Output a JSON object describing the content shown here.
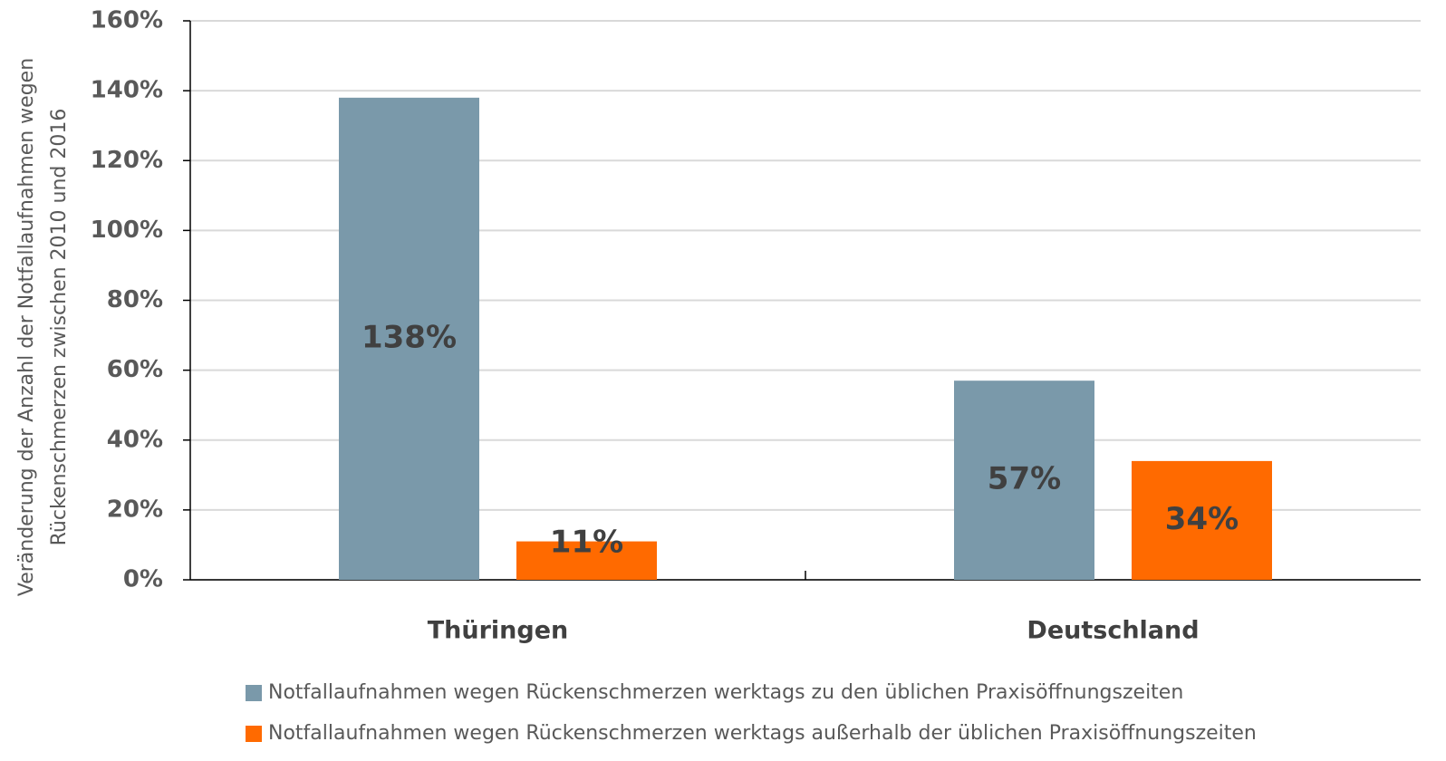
{
  "chart_data": {
    "type": "bar",
    "y_label": [
      "Veränderung der Anzahl der Notfallaufnahmen wegen",
      "Rückenschmerzen zwischen 2010 und 2016"
    ],
    "categories": [
      "Thüringen",
      "Deutschland"
    ],
    "series": [
      {
        "name": "Notfallaufnahmen wegen Rückenschmerzen werktags zu den üblichen Praxisöffnungszeiten",
        "color": "#7a99aa",
        "values": [
          138,
          57
        ],
        "value_labels": [
          "138%",
          "57%"
        ]
      },
      {
        "name": "Notfallaufnahmen wegen Rückenschmerzen werktags außerhalb der üblichen Praxisöffnungszeiten",
        "color": "#ff6a00",
        "values": [
          11,
          34
        ],
        "value_labels": [
          "11%",
          "34%"
        ]
      }
    ],
    "ylim": [
      0,
      160
    ],
    "yticks": [
      {
        "value": 0,
        "label": "0%"
      },
      {
        "value": 20,
        "label": "20%"
      },
      {
        "value": 40,
        "label": "40%"
      },
      {
        "value": 60,
        "label": "60%"
      },
      {
        "value": 80,
        "label": "80%"
      },
      {
        "value": 100,
        "label": "100%"
      },
      {
        "value": 120,
        "label": "120%"
      },
      {
        "value": 140,
        "label": "140%"
      },
      {
        "value": 160,
        "label": "160%"
      }
    ],
    "grid": true,
    "legend": "bottom"
  }
}
